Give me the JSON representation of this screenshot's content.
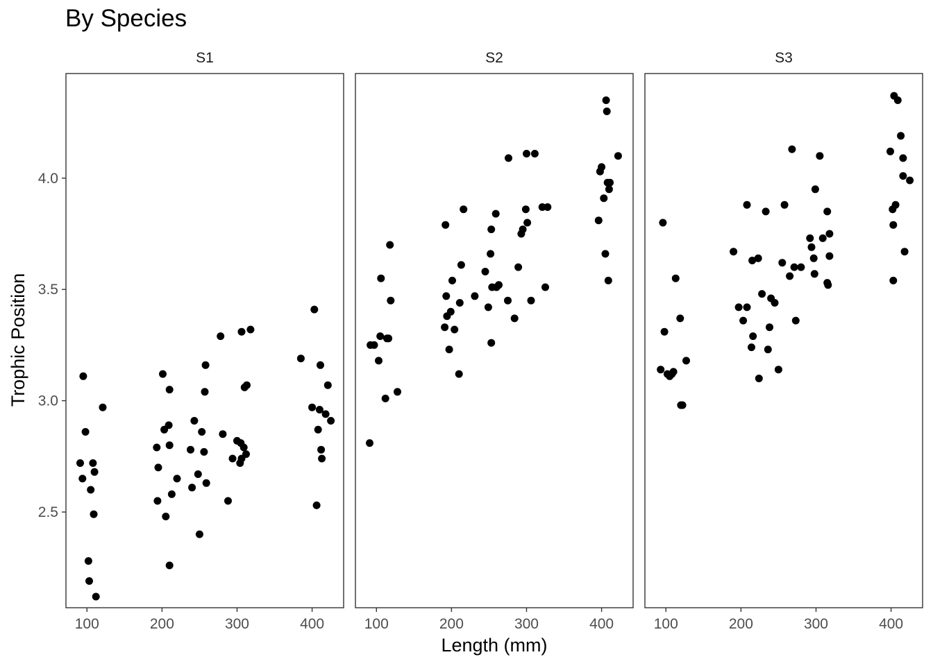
{
  "chart_data": {
    "type": "scatter",
    "title": "By Species",
    "xlabel": "Length (mm)",
    "ylabel": "Trophic Position",
    "xlim": [
      72,
      442
    ],
    "ylim": [
      2.07,
      4.47
    ],
    "xticks": [
      100,
      200,
      300,
      400
    ],
    "yticks": [
      2.5,
      3.0,
      3.5,
      4.0
    ],
    "grid": false,
    "legend": "none",
    "point_color": "#000000",
    "panels": [
      {
        "name": "S1",
        "points": [
          [
            91,
            2.72
          ],
          [
            95,
            3.11
          ],
          [
            94,
            2.65
          ],
          [
            98,
            2.86
          ],
          [
            102,
            2.28
          ],
          [
            103,
            2.19
          ],
          [
            105,
            2.6
          ],
          [
            108,
            2.72
          ],
          [
            110,
            2.68
          ],
          [
            109,
            2.49
          ],
          [
            112,
            2.12
          ],
          [
            121,
            2.97
          ],
          [
            193,
            2.79
          ],
          [
            194,
            2.55
          ],
          [
            195,
            2.7
          ],
          [
            201,
            3.12
          ],
          [
            203,
            2.87
          ],
          [
            205,
            2.48
          ],
          [
            209,
            2.89
          ],
          [
            210,
            3.05
          ],
          [
            210,
            2.8
          ],
          [
            210,
            2.26
          ],
          [
            213,
            2.58
          ],
          [
            220,
            2.65
          ],
          [
            238,
            2.78
          ],
          [
            240,
            2.61
          ],
          [
            243,
            2.91
          ],
          [
            248,
            2.67
          ],
          [
            250,
            2.4
          ],
          [
            253,
            2.86
          ],
          [
            256,
            2.77
          ],
          [
            257,
            3.04
          ],
          [
            258,
            3.16
          ],
          [
            259,
            2.63
          ],
          [
            278,
            3.29
          ],
          [
            281,
            2.85
          ],
          [
            288,
            2.55
          ],
          [
            294,
            2.74
          ],
          [
            300,
            2.82
          ],
          [
            304,
            2.72
          ],
          [
            305,
            2.81
          ],
          [
            306,
            2.74
          ],
          [
            306,
            3.31
          ],
          [
            309,
            2.79
          ],
          [
            310,
            3.06
          ],
          [
            312,
            2.76
          ],
          [
            313,
            3.07
          ],
          [
            318,
            3.32
          ],
          [
            385,
            3.19
          ],
          [
            400,
            2.97
          ],
          [
            403,
            3.41
          ],
          [
            406,
            2.53
          ],
          [
            408,
            2.87
          ],
          [
            410,
            2.96
          ],
          [
            411,
            3.16
          ],
          [
            412,
            2.78
          ],
          [
            413,
            2.74
          ],
          [
            418,
            2.94
          ],
          [
            421,
            3.07
          ],
          [
            425,
            2.91
          ]
        ]
      },
      {
        "name": "S2",
        "points": [
          [
            91,
            2.81
          ],
          [
            92,
            3.25
          ],
          [
            97,
            3.25
          ],
          [
            103,
            3.18
          ],
          [
            105,
            3.29
          ],
          [
            106,
            3.55
          ],
          [
            112,
            3.01
          ],
          [
            114,
            3.28
          ],
          [
            116,
            3.28
          ],
          [
            118,
            3.7
          ],
          [
            119,
            3.45
          ],
          [
            128,
            3.04
          ],
          [
            191,
            3.33
          ],
          [
            192,
            3.79
          ],
          [
            193,
            3.47
          ],
          [
            194,
            3.38
          ],
          [
            197,
            3.23
          ],
          [
            199,
            3.4
          ],
          [
            201,
            3.54
          ],
          [
            204,
            3.32
          ],
          [
            210,
            3.12
          ],
          [
            211,
            3.44
          ],
          [
            213,
            3.61
          ],
          [
            216,
            3.86
          ],
          [
            231,
            3.47
          ],
          [
            245,
            3.58
          ],
          [
            249,
            3.42
          ],
          [
            252,
            3.66
          ],
          [
            253,
            3.77
          ],
          [
            253,
            3.26
          ],
          [
            254,
            3.51
          ],
          [
            259,
            3.84
          ],
          [
            260,
            3.51
          ],
          [
            263,
            3.52
          ],
          [
            275,
            3.45
          ],
          [
            276,
            4.09
          ],
          [
            284,
            3.37
          ],
          [
            289,
            3.6
          ],
          [
            293,
            3.75
          ],
          [
            295,
            3.77
          ],
          [
            299,
            3.86
          ],
          [
            300,
            4.11
          ],
          [
            301,
            3.8
          ],
          [
            306,
            3.45
          ],
          [
            311,
            4.11
          ],
          [
            321,
            3.87
          ],
          [
            325,
            3.51
          ],
          [
            328,
            3.87
          ],
          [
            396,
            3.81
          ],
          [
            398,
            4.03
          ],
          [
            400,
            4.05
          ],
          [
            403,
            3.91
          ],
          [
            405,
            3.66
          ],
          [
            406,
            4.35
          ],
          [
            407,
            4.3
          ],
          [
            408,
            3.98
          ],
          [
            409,
            3.54
          ],
          [
            410,
            3.95
          ],
          [
            411,
            3.98
          ],
          [
            422,
            4.1
          ]
        ]
      },
      {
        "name": "S3",
        "points": [
          [
            93,
            3.14
          ],
          [
            96,
            3.8
          ],
          [
            98,
            3.31
          ],
          [
            102,
            3.12
          ],
          [
            105,
            3.11
          ],
          [
            108,
            3.12
          ],
          [
            110,
            3.13
          ],
          [
            113,
            3.55
          ],
          [
            119,
            3.37
          ],
          [
            120,
            2.98
          ],
          [
            122,
            2.98
          ],
          [
            127,
            3.18
          ],
          [
            190,
            3.67
          ],
          [
            197,
            3.42
          ],
          [
            203,
            3.36
          ],
          [
            208,
            3.88
          ],
          [
            208,
            3.42
          ],
          [
            214,
            3.24
          ],
          [
            215,
            3.63
          ],
          [
            216,
            3.29
          ],
          [
            223,
            3.64
          ],
          [
            224,
            3.1
          ],
          [
            228,
            3.48
          ],
          [
            233,
            3.85
          ],
          [
            236,
            3.23
          ],
          [
            238,
            3.33
          ],
          [
            240,
            3.46
          ],
          [
            245,
            3.44
          ],
          [
            250,
            3.14
          ],
          [
            255,
            3.62
          ],
          [
            258,
            3.88
          ],
          [
            265,
            3.56
          ],
          [
            268,
            4.13
          ],
          [
            271,
            3.6
          ],
          [
            273,
            3.36
          ],
          [
            280,
            3.6
          ],
          [
            292,
            3.73
          ],
          [
            294,
            3.69
          ],
          [
            297,
            3.64
          ],
          [
            298,
            3.57
          ],
          [
            299,
            3.95
          ],
          [
            305,
            4.1
          ],
          [
            309,
            3.73
          ],
          [
            315,
            3.53
          ],
          [
            315,
            3.85
          ],
          [
            316,
            3.52
          ],
          [
            318,
            3.75
          ],
          [
            318,
            3.65
          ],
          [
            399,
            4.12
          ],
          [
            402,
            3.86
          ],
          [
            403,
            3.79
          ],
          [
            403,
            3.54
          ],
          [
            404,
            4.37
          ],
          [
            406,
            3.88
          ],
          [
            409,
            4.35
          ],
          [
            413,
            4.19
          ],
          [
            416,
            4.09
          ],
          [
            416,
            4.01
          ],
          [
            418,
            3.67
          ],
          [
            425,
            3.99
          ]
        ]
      }
    ]
  }
}
